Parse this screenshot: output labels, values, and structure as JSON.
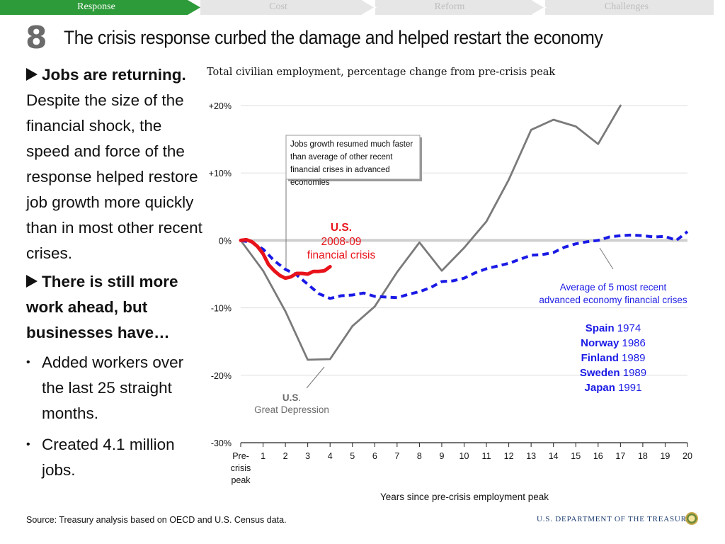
{
  "nav": {
    "tabs": [
      {
        "label": "Response",
        "active": true
      },
      {
        "label": "Cost",
        "active": false
      },
      {
        "label": "Reform",
        "active": false
      },
      {
        "label": "Challenges",
        "active": false
      }
    ],
    "active_color": "#2e9b3a",
    "inactive_color": "#e6e6e6"
  },
  "slide_number": "8",
  "title": "The crisis response curbed the damage and helped restart the economy",
  "left": {
    "p1_head": "Jobs are returning.",
    "p1_body": "Despite the size of the financial shock, the speed and force of the response helped restore job growth more quickly than in most other recent crises.",
    "p2_head": "There is still more work ahead, but businesses have…",
    "bullets": [
      "Added workers over the last 25 straight months.",
      "Created 4.1 million jobs."
    ]
  },
  "footer": {
    "source": "Source: Treasury analysis based on OECD and U.S. Census data.",
    "department": "U.S. DEPARTMENT OF THE TREASURY"
  },
  "chart_data": {
    "type": "line",
    "title": "Total civilian employment, percentage change from pre-crisis peak",
    "xlabel": "Years since pre-crisis employment peak",
    "ylabel": "",
    "x_tick_labels": [
      "Pre-\ncrisis\npeak",
      "1",
      "2",
      "3",
      "4",
      "5",
      "6",
      "7",
      "8",
      "9",
      "10",
      "11",
      "12",
      "13",
      "14",
      "15",
      "16",
      "17",
      "18",
      "19",
      "20"
    ],
    "y_ticks": [
      {
        "value": 20,
        "label": "+20%"
      },
      {
        "value": 10,
        "label": "+10%"
      },
      {
        "value": 0,
        "label": "0%"
      },
      {
        "value": -10,
        "label": "-10%"
      },
      {
        "value": -20,
        "label": "-20%"
      },
      {
        "value": -30,
        "label": "-30%"
      }
    ],
    "xlim": [
      0,
      20
    ],
    "ylim": [
      -30,
      20
    ],
    "grid": true,
    "series": [
      {
        "name": "U.S. Great Depression",
        "color": "#7a7a7a",
        "style": "solid",
        "x": [
          0,
          1,
          2,
          3,
          4,
          5,
          6,
          7,
          8,
          9,
          10,
          11,
          12,
          13,
          14,
          15,
          16,
          17
        ],
        "y": [
          0,
          -4.5,
          -10.5,
          -17.7,
          -17.6,
          -12.7,
          -9.8,
          -4.7,
          -0.3,
          -4.5,
          -1.1,
          2.8,
          9.0,
          16.4,
          17.9,
          16.9,
          14.3,
          20.0
        ]
      },
      {
        "name": "Average of 5 most recent advanced economy financial crises",
        "color": "#1a1ae6",
        "style": "dashed",
        "x": [
          0,
          0.5,
          1,
          1.5,
          2,
          2.5,
          3,
          3.5,
          4,
          4.5,
          5,
          5.5,
          6,
          6.5,
          7,
          7.5,
          8,
          8.5,
          9,
          9.5,
          10,
          10.5,
          11,
          11.5,
          12,
          12.5,
          13,
          13.5,
          14,
          14.5,
          15,
          15.5,
          16,
          16.5,
          17,
          17.5,
          18,
          18.5,
          19,
          19.5,
          20
        ],
        "y": [
          0,
          -0.3,
          -1.3,
          -3.0,
          -4.3,
          -5.1,
          -6.5,
          -7.9,
          -8.6,
          -8.2,
          -8.1,
          -7.8,
          -8.3,
          -8.4,
          -8.5,
          -8.0,
          -7.6,
          -7.0,
          -6.1,
          -6.0,
          -5.6,
          -4.8,
          -4.2,
          -3.8,
          -3.4,
          -2.8,
          -2.2,
          -2.1,
          -1.8,
          -1.0,
          -0.5,
          -0.2,
          0.0,
          0.5,
          0.7,
          0.8,
          0.7,
          0.5,
          0.6,
          0.0,
          1.3
        ]
      },
      {
        "name": "U.S. 2008-09 financial crisis",
        "color": "#e8131a",
        "style": "solid",
        "x": [
          0,
          0.25,
          0.5,
          0.75,
          1,
          1.25,
          1.5,
          1.75,
          2,
          2.25,
          2.5,
          2.75,
          3,
          3.25,
          3.5,
          3.75,
          4
        ],
        "y": [
          0,
          0.1,
          -0.2,
          -0.9,
          -2.0,
          -3.6,
          -4.5,
          -5.2,
          -5.6,
          -5.4,
          -4.9,
          -4.9,
          -5.0,
          -4.6,
          -4.6,
          -4.5,
          -3.9
        ]
      }
    ],
    "annotations": {
      "callout_box": "Jobs growth resumed much faster than average of other recent financial crises in advanced economies",
      "us_2008_label_bold": "U.S.",
      "us_2008_label_rest": "2008-09 financial crisis",
      "depression_label_bold": "U.S",
      "depression_label_rest": "Great Depression",
      "average_label": "Average of 5 most recent advanced economy financial crises",
      "countries": [
        {
          "name": "Spain",
          "year": "1974"
        },
        {
          "name": "Norway",
          "year": "1986"
        },
        {
          "name": "Finland",
          "year": "1989"
        },
        {
          "name": "Sweden",
          "year": "1989"
        },
        {
          "name": "Japan",
          "year": "1991"
        }
      ]
    }
  }
}
